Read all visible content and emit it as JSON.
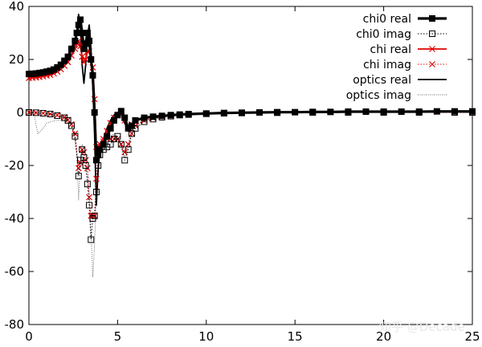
{
  "chart_data": {
    "type": "line",
    "title": "",
    "xlabel": "",
    "ylabel": "",
    "xlim": [
      0,
      25
    ],
    "ylim": [
      -80,
      40
    ],
    "xticks": [
      0,
      5,
      10,
      15,
      20,
      25
    ],
    "yticks": [
      -80,
      -60,
      -40,
      -20,
      0,
      20,
      40
    ],
    "grid": false,
    "legend_position": "top-right",
    "series": [
      {
        "name": "chi0 real",
        "color": "#000000",
        "style": "solid-thick",
        "marker": "filled-square",
        "points": [
          [
            0.0,
            14.5
          ],
          [
            0.2,
            14.6
          ],
          [
            0.4,
            14.7
          ],
          [
            0.6,
            14.9
          ],
          [
            0.8,
            15.1
          ],
          [
            1.0,
            15.4
          ],
          [
            1.2,
            15.7
          ],
          [
            1.4,
            16.2
          ],
          [
            1.6,
            17.0
          ],
          [
            1.8,
            18.0
          ],
          [
            2.0,
            19.5
          ],
          [
            2.2,
            21.0
          ],
          [
            2.4,
            24.0
          ],
          [
            2.6,
            27.0
          ],
          [
            2.7,
            30.0
          ],
          [
            2.8,
            33.0
          ],
          [
            2.9,
            35.0
          ],
          [
            3.0,
            30.0
          ],
          [
            3.1,
            24.0
          ],
          [
            3.2,
            26.0
          ],
          [
            3.3,
            30.0
          ],
          [
            3.4,
            27.0
          ],
          [
            3.5,
            20.0
          ],
          [
            3.6,
            14.0
          ],
          [
            3.7,
            0.0
          ],
          [
            3.8,
            -18.0
          ],
          [
            3.9,
            -16.0
          ],
          [
            4.0,
            -14.0
          ],
          [
            4.2,
            -12.0
          ],
          [
            4.4,
            -9.0
          ],
          [
            4.6,
            -6.0
          ],
          [
            4.8,
            -3.0
          ],
          [
            5.0,
            -1.0
          ],
          [
            5.2,
            0.5
          ],
          [
            5.4,
            -2.0
          ],
          [
            5.6,
            -6.0
          ],
          [
            5.8,
            -5.0
          ],
          [
            6.0,
            -3.0
          ],
          [
            6.5,
            -2.0
          ],
          [
            7.0,
            -1.6
          ],
          [
            7.5,
            -1.3
          ],
          [
            8.0,
            -1.0
          ],
          [
            8.5,
            -0.8
          ],
          [
            9.0,
            -0.6
          ],
          [
            10.0,
            -0.4
          ],
          [
            11.0,
            -0.2
          ],
          [
            12.0,
            -0.1
          ],
          [
            13.0,
            0.0
          ],
          [
            14.0,
            0.1
          ],
          [
            15.0,
            0.1
          ],
          [
            16.0,
            0.2
          ],
          [
            17.0,
            0.2
          ],
          [
            18.0,
            0.3
          ],
          [
            19.0,
            0.3
          ],
          [
            20.0,
            0.3
          ],
          [
            21.0,
            0.3
          ],
          [
            22.0,
            0.3
          ],
          [
            23.0,
            0.4
          ],
          [
            24.0,
            0.4
          ],
          [
            25.0,
            0.4
          ]
        ]
      },
      {
        "name": "chi0 imag",
        "color": "#000000",
        "style": "dotted",
        "marker": "open-square",
        "points": [
          [
            0.0,
            0.0
          ],
          [
            0.4,
            -0.1
          ],
          [
            0.8,
            -0.3
          ],
          [
            1.2,
            -0.6
          ],
          [
            1.6,
            -1.2
          ],
          [
            2.0,
            -2.0
          ],
          [
            2.2,
            -3.0
          ],
          [
            2.4,
            -5.0
          ],
          [
            2.6,
            -9.0
          ],
          [
            2.8,
            -24.0
          ],
          [
            2.9,
            -18.0
          ],
          [
            3.0,
            -14.0
          ],
          [
            3.1,
            -17.0
          ],
          [
            3.2,
            -20.0
          ],
          [
            3.3,
            -27.0
          ],
          [
            3.4,
            -35.0
          ],
          [
            3.5,
            -48.0
          ],
          [
            3.6,
            -40.0
          ],
          [
            3.7,
            -39.0
          ],
          [
            3.8,
            -30.0
          ],
          [
            3.9,
            -20.0
          ],
          [
            4.0,
            -16.0
          ],
          [
            4.2,
            -14.0
          ],
          [
            4.4,
            -13.0
          ],
          [
            4.6,
            -12.0
          ],
          [
            4.8,
            -10.0
          ],
          [
            5.0,
            -9.0
          ],
          [
            5.2,
            -12.0
          ],
          [
            5.4,
            -18.0
          ],
          [
            5.6,
            -14.0
          ],
          [
            5.8,
            -8.0
          ],
          [
            6.0,
            -6.0
          ],
          [
            6.5,
            -3.5
          ],
          [
            7.0,
            -2.5
          ],
          [
            7.5,
            -1.8
          ],
          [
            8.0,
            -1.4
          ],
          [
            8.5,
            -1.0
          ],
          [
            9.0,
            -0.8
          ],
          [
            10.0,
            -0.5
          ],
          [
            11.0,
            -0.3
          ],
          [
            12.0,
            -0.2
          ],
          [
            14.0,
            -0.1
          ],
          [
            16.0,
            0.0
          ],
          [
            18.0,
            0.0
          ],
          [
            20.0,
            0.0
          ],
          [
            22.0,
            0.0
          ],
          [
            24.0,
            0.0
          ],
          [
            25.0,
            0.0
          ]
        ]
      },
      {
        "name": "chi real",
        "color": "#e00000",
        "style": "solid",
        "marker": "x",
        "points": [
          [
            0.0,
            13.0
          ],
          [
            0.2,
            13.1
          ],
          [
            0.4,
            13.2
          ],
          [
            0.6,
            13.4
          ],
          [
            0.8,
            13.6
          ],
          [
            1.0,
            13.9
          ],
          [
            1.2,
            14.2
          ],
          [
            1.4,
            14.7
          ],
          [
            1.6,
            15.4
          ],
          [
            1.8,
            16.3
          ],
          [
            2.0,
            17.6
          ],
          [
            2.2,
            19.0
          ],
          [
            2.4,
            21.5
          ],
          [
            2.6,
            24.0
          ],
          [
            2.7,
            26.0
          ],
          [
            2.8,
            27.0
          ],
          [
            2.9,
            25.0
          ],
          [
            3.0,
            21.0
          ],
          [
            3.1,
            19.0
          ],
          [
            3.2,
            20.0
          ],
          [
            3.3,
            23.0
          ],
          [
            3.4,
            23.0
          ],
          [
            3.5,
            20.0
          ],
          [
            3.6,
            17.0
          ],
          [
            3.7,
            5.0
          ],
          [
            3.8,
            -13.0
          ],
          [
            3.9,
            -14.0
          ],
          [
            4.0,
            -12.0
          ],
          [
            4.2,
            -10.0
          ],
          [
            4.4,
            -7.0
          ],
          [
            4.6,
            -4.0
          ],
          [
            4.8,
            -2.0
          ],
          [
            5.0,
            -1.0
          ],
          [
            5.2,
            -0.5
          ],
          [
            5.4,
            -3.0
          ],
          [
            5.6,
            -6.0
          ],
          [
            5.8,
            -4.5
          ],
          [
            6.0,
            -3.0
          ],
          [
            6.5,
            -2.2
          ],
          [
            7.0,
            -1.8
          ],
          [
            7.5,
            -1.5
          ],
          [
            8.0,
            -1.2
          ],
          [
            8.5,
            -1.0
          ],
          [
            9.0,
            -0.8
          ],
          [
            10.0,
            -0.5
          ],
          [
            11.0,
            -0.3
          ],
          [
            12.0,
            -0.1
          ],
          [
            13.0,
            0.0
          ],
          [
            14.0,
            0.1
          ],
          [
            15.0,
            0.1
          ],
          [
            16.0,
            0.2
          ],
          [
            17.0,
            0.2
          ],
          [
            18.0,
            0.3
          ],
          [
            19.0,
            0.3
          ],
          [
            20.0,
            0.3
          ],
          [
            21.0,
            0.3
          ],
          [
            22.0,
            0.3
          ],
          [
            23.0,
            0.4
          ],
          [
            24.0,
            0.4
          ],
          [
            25.0,
            0.4
          ]
        ]
      },
      {
        "name": "chi imag",
        "color": "#e00000",
        "style": "dotted",
        "marker": "x",
        "points": [
          [
            0.0,
            0.0
          ],
          [
            0.4,
            -0.1
          ],
          [
            0.8,
            -0.3
          ],
          [
            1.2,
            -0.6
          ],
          [
            1.6,
            -1.0
          ],
          [
            2.0,
            -1.8
          ],
          [
            2.2,
            -2.8
          ],
          [
            2.4,
            -4.5
          ],
          [
            2.6,
            -8.0
          ],
          [
            2.8,
            -21.0
          ],
          [
            2.9,
            -19.0
          ],
          [
            3.0,
            -14.0
          ],
          [
            3.1,
            -15.0
          ],
          [
            3.2,
            -18.0
          ],
          [
            3.3,
            -21.0
          ],
          [
            3.4,
            -32.0
          ],
          [
            3.5,
            -39.0
          ],
          [
            3.6,
            -39.0
          ],
          [
            3.7,
            -39.0
          ],
          [
            3.8,
            -25.0
          ],
          [
            3.9,
            -16.0
          ],
          [
            4.0,
            -13.0
          ],
          [
            4.2,
            -11.0
          ],
          [
            4.4,
            -10.0
          ],
          [
            4.6,
            -10.0
          ],
          [
            4.8,
            -10.0
          ],
          [
            5.0,
            -10.0
          ],
          [
            5.2,
            -12.0
          ],
          [
            5.4,
            -15.0
          ],
          [
            5.6,
            -12.0
          ],
          [
            5.8,
            -8.0
          ],
          [
            6.0,
            -5.0
          ],
          [
            6.5,
            -3.0
          ],
          [
            7.0,
            -2.2
          ],
          [
            7.5,
            -1.6
          ],
          [
            8.0,
            -1.2
          ],
          [
            8.5,
            -0.9
          ],
          [
            9.0,
            -0.7
          ],
          [
            10.0,
            -0.4
          ],
          [
            11.0,
            -0.3
          ],
          [
            12.0,
            -0.2
          ],
          [
            14.0,
            -0.1
          ],
          [
            16.0,
            0.0
          ],
          [
            18.0,
            0.0
          ],
          [
            20.0,
            0.0
          ],
          [
            22.0,
            0.0
          ],
          [
            24.0,
            0.0
          ],
          [
            25.0,
            0.0
          ]
        ]
      },
      {
        "name": "optics  real",
        "color": "#000000",
        "style": "solid",
        "marker": "none",
        "points": [
          [
            0.0,
            14.0
          ],
          [
            0.5,
            14.3
          ],
          [
            1.0,
            15.0
          ],
          [
            1.5,
            16.3
          ],
          [
            2.0,
            18.5
          ],
          [
            2.3,
            20.5
          ],
          [
            2.5,
            23.0
          ],
          [
            2.7,
            30.0
          ],
          [
            2.8,
            37.0
          ],
          [
            2.9,
            33.0
          ],
          [
            3.0,
            18.0
          ],
          [
            3.1,
            11.0
          ],
          [
            3.2,
            18.0
          ],
          [
            3.3,
            29.0
          ],
          [
            3.4,
            33.0
          ],
          [
            3.5,
            24.0
          ],
          [
            3.6,
            10.0
          ],
          [
            3.7,
            -8.0
          ],
          [
            3.8,
            -35.0
          ],
          [
            3.9,
            -22.0
          ],
          [
            4.0,
            -14.0
          ],
          [
            4.2,
            -10.0
          ],
          [
            4.4,
            -6.0
          ],
          [
            4.6,
            -3.0
          ],
          [
            4.8,
            -1.0
          ],
          [
            5.0,
            0.0
          ],
          [
            5.2,
            -0.5
          ],
          [
            5.4,
            -4.0
          ],
          [
            5.6,
            -7.0
          ],
          [
            5.8,
            -5.0
          ],
          [
            6.0,
            -3.0
          ],
          [
            6.5,
            -2.0
          ],
          [
            7.0,
            -1.5
          ],
          [
            8.0,
            -1.0
          ],
          [
            9.0,
            -0.6
          ],
          [
            10.0,
            -0.4
          ],
          [
            12.0,
            -0.1
          ],
          [
            14.0,
            0.1
          ],
          [
            16.0,
            0.2
          ],
          [
            18.0,
            0.3
          ],
          [
            20.0,
            0.3
          ],
          [
            22.0,
            0.3
          ],
          [
            24.0,
            0.4
          ],
          [
            25.0,
            0.4
          ]
        ]
      },
      {
        "name": "optics  imag",
        "color": "#606060",
        "style": "dotted-thin",
        "marker": "none",
        "points": [
          [
            0.0,
            0.0
          ],
          [
            0.3,
            -1.0
          ],
          [
            0.5,
            -8.0
          ],
          [
            0.8,
            -6.0
          ],
          [
            1.0,
            -4.0
          ],
          [
            1.5,
            -3.0
          ],
          [
            2.0,
            -3.0
          ],
          [
            2.3,
            -4.0
          ],
          [
            2.5,
            -7.0
          ],
          [
            2.7,
            -15.0
          ],
          [
            2.8,
            -33.0
          ],
          [
            2.9,
            -20.0
          ],
          [
            3.0,
            -12.0
          ],
          [
            3.2,
            -15.0
          ],
          [
            3.4,
            -30.0
          ],
          [
            3.5,
            -45.0
          ],
          [
            3.6,
            -62.0
          ],
          [
            3.7,
            -50.0
          ],
          [
            3.8,
            -30.0
          ],
          [
            3.9,
            -18.0
          ],
          [
            4.0,
            -13.0
          ],
          [
            4.2,
            -11.0
          ],
          [
            4.4,
            -10.0
          ],
          [
            4.6,
            -9.0
          ],
          [
            4.8,
            -8.0
          ],
          [
            5.0,
            -9.0
          ],
          [
            5.2,
            -13.0
          ],
          [
            5.4,
            -17.0
          ],
          [
            5.6,
            -12.0
          ],
          [
            5.8,
            -7.0
          ],
          [
            6.0,
            -5.0
          ],
          [
            6.5,
            -3.0
          ],
          [
            7.0,
            -2.0
          ],
          [
            8.0,
            -1.2
          ],
          [
            9.0,
            -0.8
          ],
          [
            10.0,
            -0.5
          ],
          [
            12.0,
            -0.2
          ],
          [
            14.0,
            -0.1
          ],
          [
            16.0,
            0.0
          ],
          [
            20.0,
            0.0
          ],
          [
            25.0,
            0.0
          ]
        ]
      }
    ]
  },
  "watermark": {
    "text": "知乎 @Decade"
  }
}
